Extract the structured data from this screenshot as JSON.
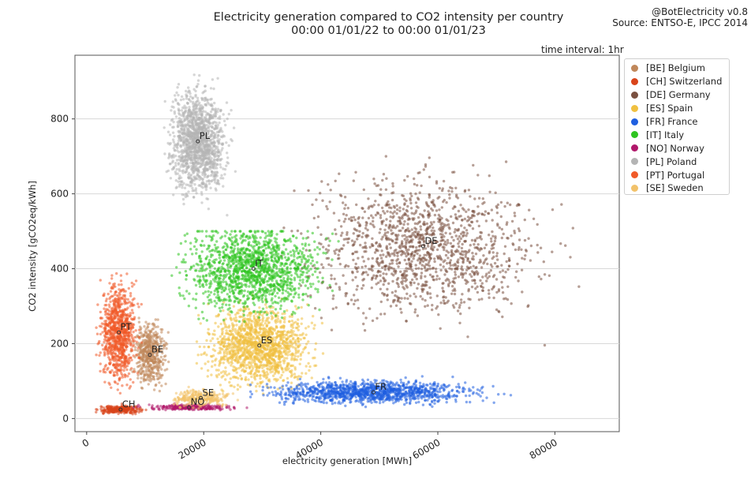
{
  "chart_data": {
    "type": "scatter",
    "title": "Electricity generation compared to CO2 intensity per country",
    "subtitle": "00:00 01/01/22 to 00:00 01/01/23",
    "credit": "@BotElectricity v0.8",
    "source": "Source: ENTSO-E, IPCC 2014",
    "note": "time interval: 1hr",
    "xlabel": "electricity generation [MWh]",
    "ylabel": "CO2 intensity [gCO2eq/kWh]",
    "xlim": [
      -2000,
      91000
    ],
    "ylim": [
      -35,
      970
    ],
    "xticks": [
      0,
      20000,
      40000,
      60000,
      80000
    ],
    "yticks": [
      0,
      200,
      400,
      600,
      800
    ],
    "grid": "horizontal",
    "legend_position": "outside-right",
    "series": [
      {
        "code": "BE",
        "name": "[BE] Belgium",
        "color": "#c0875a",
        "centroid": [
          10800,
          170
        ],
        "x_range": [
          7500,
          15500
        ],
        "y_range": [
          70,
          310
        ]
      },
      {
        "code": "CH",
        "name": "[CH] Switzerland",
        "color": "#d9441a",
        "centroid": [
          5800,
          24
        ],
        "x_range": [
          1500,
          12000
        ],
        "y_range": [
          12,
          45
        ]
      },
      {
        "code": "DE",
        "name": "[DE] Germany",
        "color": "#7a5040",
        "centroid": [
          57500,
          460
        ],
        "x_range": [
          30000,
          86000
        ],
        "y_range": [
          150,
          700
        ]
      },
      {
        "code": "ES",
        "name": "[ES] Spain",
        "color": "#f0c040",
        "centroid": [
          29500,
          195
        ],
        "x_range": [
          17000,
          42000
        ],
        "y_range": [
          60,
          370
        ]
      },
      {
        "code": "FR",
        "name": "[FR] France",
        "color": "#1f5fe0",
        "centroid": [
          49000,
          70
        ],
        "x_range": [
          28000,
          80000
        ],
        "y_range": [
          25,
          115
        ]
      },
      {
        "code": "IT",
        "name": "[IT] Italy",
        "color": "#2ec41f",
        "centroid": [
          28500,
          400
        ],
        "x_range": [
          13000,
          46500
        ],
        "y_range": [
          170,
          500
        ]
      },
      {
        "code": "NO",
        "name": "[NO] Norway",
        "color": "#b0176a",
        "centroid": [
          17500,
          30
        ],
        "x_range": [
          6000,
          28000
        ],
        "y_range": [
          18,
          40
        ]
      },
      {
        "code": "PL",
        "name": "[PL] Poland",
        "color": "#b4b4b4",
        "centroid": [
          19000,
          740
        ],
        "x_range": [
          12500,
          26000
        ],
        "y_range": [
          510,
          920
        ]
      },
      {
        "code": "PT",
        "name": "[PT] Portugal",
        "color": "#f05a28",
        "centroid": [
          5500,
          230
        ],
        "x_range": [
          1500,
          10500
        ],
        "y_range": [
          50,
          440
        ]
      },
      {
        "code": "SE",
        "name": "[SE] Sweden",
        "color": "#f2c26a",
        "centroid": [
          19500,
          55
        ],
        "x_range": [
          14000,
          28000
        ],
        "y_range": [
          25,
          90
        ]
      }
    ]
  }
}
